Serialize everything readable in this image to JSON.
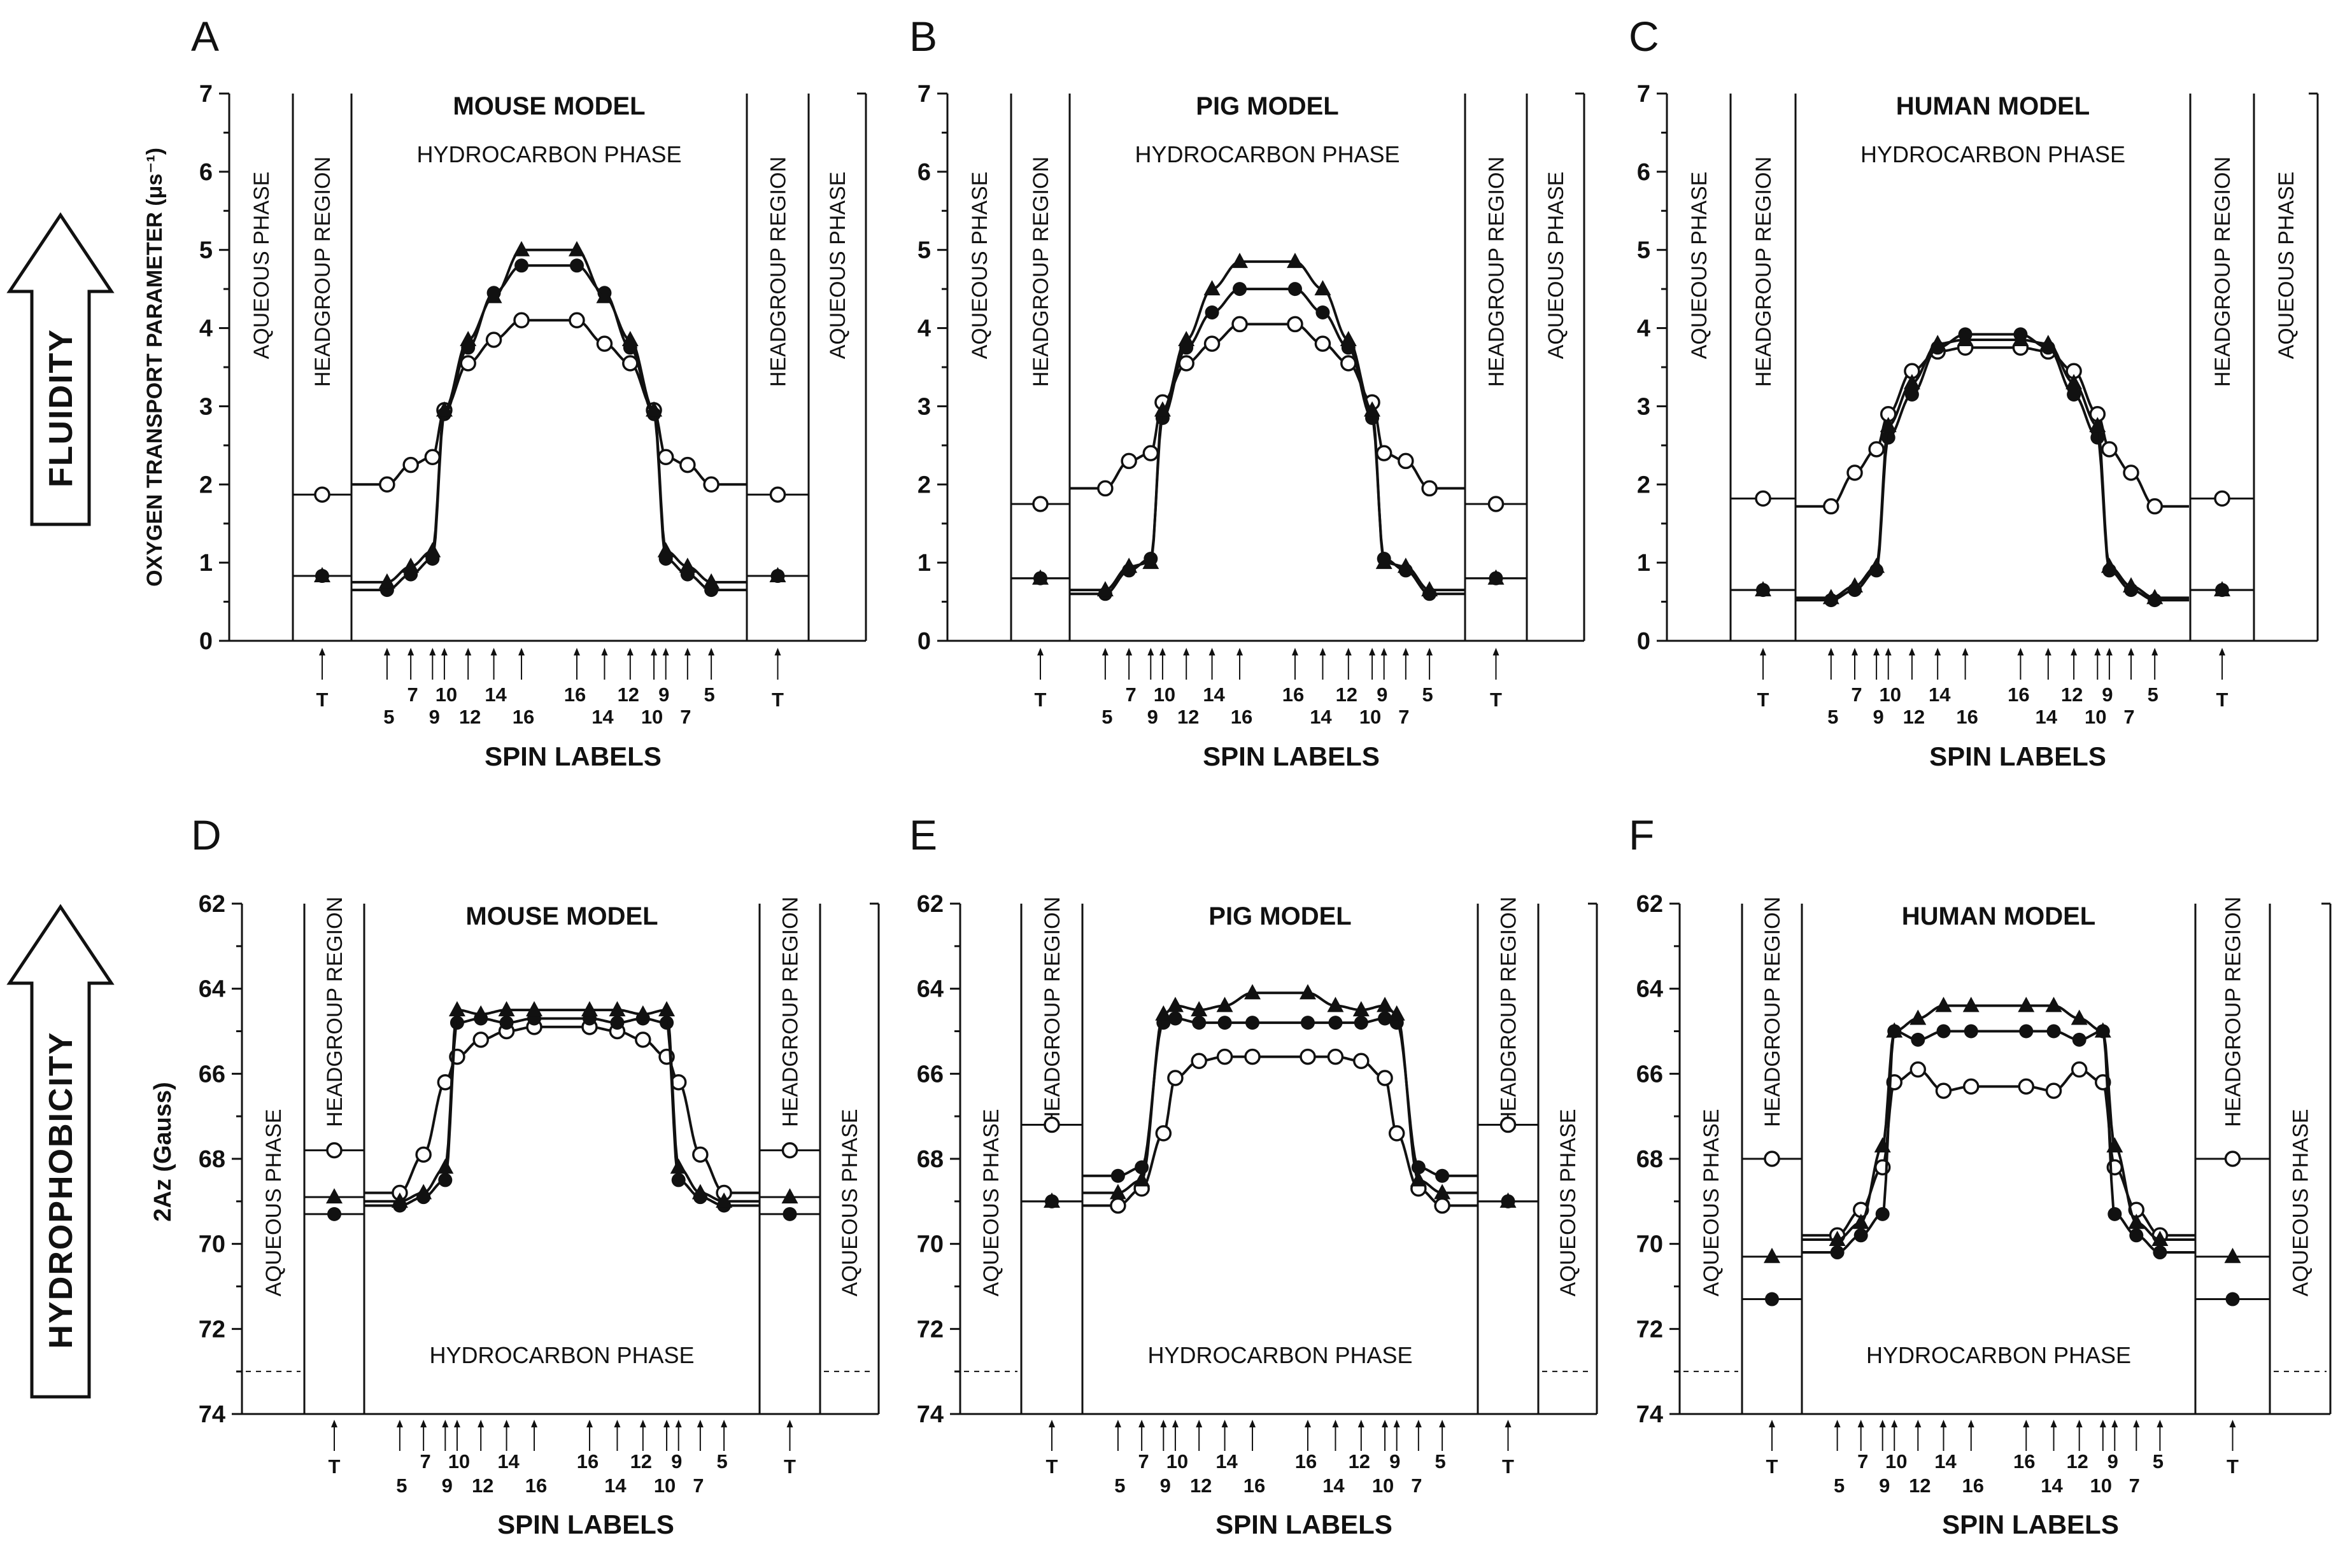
{
  "side_labels": {
    "top": "FLUIDITY",
    "bottom": "HYDROPHOBICITY"
  },
  "rows": [
    {
      "id": "fluidity",
      "ylabel": "OXYGEN TRANSPORT PARAMETER (μs⁻¹)",
      "xlabel": "SPIN LABELS",
      "ylim": [
        0,
        7
      ],
      "inverted": false,
      "yticks": [
        "0",
        "1",
        "2",
        "3",
        "4",
        "5",
        "6",
        "7"
      ],
      "phase_label": "HYDROCARBON PHASE",
      "phase_position": "top"
    },
    {
      "id": "hydrophobicity",
      "ylabel": "2Az (Gauss)",
      "xlabel": "SPIN LABELS",
      "ylim": [
        62,
        74
      ],
      "inverted": true,
      "yticks": [
        "62",
        "64",
        "66",
        "68",
        "70",
        "72",
        "74"
      ],
      "phase_label": "HYDROCARBON PHASE",
      "phase_position": "bottom",
      "dashed_level": 73
    }
  ],
  "region_labels": {
    "aqueous": "AQUEOUS PHASE",
    "headgroup": "HEADGROUP REGION"
  },
  "spin_labels": {
    "left": [
      "5",
      "7",
      "9",
      "10",
      "12",
      "14",
      "16"
    ],
    "right": [
      "16",
      "14",
      "12",
      "10",
      "9",
      "7",
      "5"
    ],
    "headgroup": "T"
  },
  "chart_data": [
    {
      "panel": "A",
      "type": "line",
      "title": "MOUSE MODEL",
      "ylabel": "Oxygen transport parameter (μs⁻¹)",
      "xlabel": "Spin labels",
      "ylim": [
        0,
        7
      ],
      "series": [
        {
          "name": "open circles",
          "marker": "open-circle",
          "values": [
            1.87,
            2.0,
            2.25,
            2.35,
            2.95,
            3.55,
            3.85,
            4.1,
            4.1,
            3.8,
            3.55,
            2.95,
            2.35,
            2.25,
            2.0,
            1.87
          ]
        },
        {
          "name": "filled circles",
          "marker": "filled-circle",
          "values": [
            0.83,
            0.65,
            0.85,
            1.05,
            2.9,
            3.75,
            4.45,
            4.8,
            4.8,
            4.45,
            3.75,
            2.9,
            1.05,
            0.85,
            0.65,
            0.83
          ]
        },
        {
          "name": "filled triangles",
          "marker": "filled-triangle",
          "values": [
            0.83,
            0.75,
            0.95,
            1.15,
            2.95,
            3.85,
            4.4,
            5.0,
            5.0,
            4.4,
            3.85,
            2.95,
            1.15,
            0.95,
            0.75,
            0.83
          ]
        }
      ]
    },
    {
      "panel": "B",
      "type": "line",
      "title": "PIG MODEL",
      "ylabel": "Oxygen transport parameter (μs⁻¹)",
      "xlabel": "Spin labels",
      "ylim": [
        0,
        7
      ],
      "series": [
        {
          "name": "open circles",
          "marker": "open-circle",
          "values": [
            1.75,
            1.95,
            2.3,
            2.4,
            3.05,
            3.55,
            3.8,
            4.05,
            4.05,
            3.8,
            3.55,
            3.05,
            2.4,
            2.3,
            1.95,
            1.75
          ]
        },
        {
          "name": "filled circles",
          "marker": "filled-circle",
          "values": [
            0.8,
            0.6,
            0.9,
            1.05,
            2.85,
            3.75,
            4.2,
            4.5,
            4.5,
            4.2,
            3.75,
            2.85,
            1.05,
            0.9,
            0.6,
            0.8
          ]
        },
        {
          "name": "filled triangles",
          "marker": "filled-triangle",
          "values": [
            0.8,
            0.65,
            0.95,
            1.0,
            2.95,
            3.85,
            4.5,
            4.85,
            4.85,
            4.5,
            3.85,
            2.95,
            1.0,
            0.95,
            0.65,
            0.8
          ]
        }
      ]
    },
    {
      "panel": "C",
      "type": "line",
      "title": "HUMAN MODEL",
      "ylabel": "Oxygen transport parameter (μs⁻¹)",
      "xlabel": "Spin labels",
      "ylim": [
        0,
        7
      ],
      "series": [
        {
          "name": "open circles",
          "marker": "open-circle",
          "values": [
            1.82,
            1.72,
            2.15,
            2.45,
            2.9,
            3.45,
            3.7,
            3.75,
            3.75,
            3.7,
            3.45,
            2.9,
            2.45,
            2.15,
            1.72,
            1.82
          ]
        },
        {
          "name": "filled circles",
          "marker": "filled-circle",
          "values": [
            0.65,
            0.52,
            0.65,
            0.9,
            2.6,
            3.15,
            3.75,
            3.92,
            3.92,
            3.75,
            3.15,
            2.6,
            0.9,
            0.65,
            0.52,
            0.65
          ]
        },
        {
          "name": "filled triangles",
          "marker": "filled-triangle",
          "values": [
            0.65,
            0.55,
            0.7,
            0.95,
            2.75,
            3.3,
            3.8,
            3.85,
            3.85,
            3.8,
            3.3,
            2.75,
            0.95,
            0.7,
            0.55,
            0.65
          ]
        }
      ]
    },
    {
      "panel": "D",
      "type": "line",
      "title": "MOUSE MODEL",
      "ylabel": "2Az (Gauss)",
      "xlabel": "Spin labels",
      "ylim": [
        62,
        74
      ],
      "series": [
        {
          "name": "open circles",
          "marker": "open-circle",
          "values": [
            67.8,
            68.8,
            67.9,
            66.2,
            65.6,
            65.2,
            65.0,
            64.9,
            64.9,
            65.0,
            65.2,
            65.6,
            66.2,
            67.9,
            68.8,
            67.8
          ]
        },
        {
          "name": "filled circles",
          "marker": "filled-circle",
          "values": [
            69.3,
            69.1,
            68.9,
            68.5,
            64.8,
            64.7,
            64.8,
            64.7,
            64.7,
            64.8,
            64.7,
            64.8,
            68.5,
            68.9,
            69.1,
            69.3
          ]
        },
        {
          "name": "filled triangles",
          "marker": "filled-triangle",
          "values": [
            68.9,
            69.0,
            68.8,
            68.2,
            64.5,
            64.6,
            64.5,
            64.5,
            64.5,
            64.5,
            64.6,
            64.5,
            68.2,
            68.8,
            69.0,
            68.9
          ]
        }
      ]
    },
    {
      "panel": "E",
      "type": "line",
      "title": "PIG MODEL",
      "ylabel": "2Az (Gauss)",
      "xlabel": "Spin labels",
      "ylim": [
        62,
        74
      ],
      "series": [
        {
          "name": "open circles",
          "marker": "open-circle",
          "values": [
            67.2,
            69.1,
            68.7,
            67.4,
            66.1,
            65.7,
            65.6,
            65.6,
            65.6,
            65.6,
            65.7,
            66.1,
            67.4,
            68.7,
            69.1,
            67.2
          ]
        },
        {
          "name": "filled circles",
          "marker": "filled-circle",
          "values": [
            69.0,
            68.4,
            68.2,
            64.8,
            64.7,
            64.8,
            64.8,
            64.8,
            64.8,
            64.8,
            64.8,
            64.7,
            64.8,
            68.2,
            68.4,
            69.0
          ]
        },
        {
          "name": "filled triangles",
          "marker": "filled-triangle",
          "values": [
            69.0,
            68.8,
            68.5,
            64.6,
            64.4,
            64.5,
            64.4,
            64.1,
            64.1,
            64.4,
            64.5,
            64.4,
            64.6,
            68.5,
            68.8,
            69.0
          ]
        }
      ]
    },
    {
      "panel": "F",
      "type": "line",
      "title": "HUMAN MODEL",
      "ylabel": "2Az (Gauss)",
      "xlabel": "Spin labels",
      "ylim": [
        62,
        74
      ],
      "series": [
        {
          "name": "open circles",
          "marker": "open-circle",
          "values": [
            68.0,
            69.8,
            69.2,
            68.2,
            66.2,
            65.9,
            66.4,
            66.3,
            66.3,
            66.4,
            65.9,
            66.2,
            68.2,
            69.2,
            69.8,
            68.0
          ]
        },
        {
          "name": "filled circles",
          "marker": "filled-circle",
          "values": [
            71.3,
            70.2,
            69.8,
            69.3,
            65.0,
            65.2,
            65.0,
            65.0,
            65.0,
            65.0,
            65.2,
            65.0,
            69.3,
            69.8,
            70.2,
            71.3
          ]
        },
        {
          "name": "filled triangles",
          "marker": "filled-triangle",
          "values": [
            70.3,
            69.9,
            69.5,
            67.7,
            65.0,
            64.7,
            64.4,
            64.4,
            64.4,
            64.4,
            64.7,
            65.0,
            67.7,
            69.5,
            69.9,
            70.3
          ]
        }
      ]
    }
  ]
}
